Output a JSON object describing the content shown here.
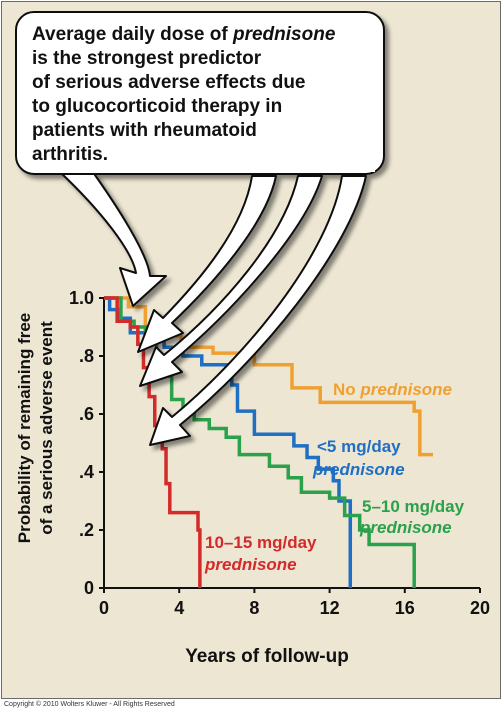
{
  "callout": {
    "line1_pre": "Average daily dose of ",
    "line1_em": "prednisone",
    "line2": "is the strongest predictor",
    "line3": "of serious adverse effects due",
    "line4": "to glucocorticoid therapy in",
    "line5": "patients with rheumatoid",
    "line6": "arthritis."
  },
  "copyright": "Copyright © 2010 Wolters Kluwer - All Rights Reserved",
  "chart_data": {
    "type": "line",
    "step": true,
    "xlabel": "Years of follow-up",
    "ylabel_line1": "Probability of remaining free",
    "ylabel_line2": "of a serious adverse event",
    "xlim": [
      0,
      20
    ],
    "ylim": [
      0,
      1
    ],
    "x_ticks": [
      "0",
      "4",
      "8",
      "12",
      "16",
      "20"
    ],
    "x_tick_values": [
      0,
      4,
      8,
      12,
      16,
      20
    ],
    "y_ticks": [
      "0",
      ".2",
      ".4",
      ".6",
      ".8",
      "1.0"
    ],
    "y_tick_values": [
      0,
      0.2,
      0.4,
      0.6,
      0.8,
      1.0
    ],
    "series": [
      {
        "name": "No prednisone",
        "label_line1_pre": "No ",
        "label_line1_em": "prednisone",
        "label_line2": "",
        "color": "#f0a030",
        "points": [
          [
            0,
            1.0
          ],
          [
            1.3,
            0.97
          ],
          [
            2.2,
            0.9
          ],
          [
            3.2,
            0.87
          ],
          [
            4.1,
            0.83
          ],
          [
            5.8,
            0.81
          ],
          [
            7.8,
            0.8
          ],
          [
            8.0,
            0.77
          ],
          [
            10.0,
            0.69
          ],
          [
            11.5,
            0.64
          ],
          [
            16.5,
            0.61
          ],
          [
            16.8,
            0.46
          ],
          [
            17.5,
            0.46
          ]
        ]
      },
      {
        "name": "<5 mg/day prednisone",
        "label_line1_pre": "<5 mg/day",
        "label_line1_em": "",
        "label_line2": "prednisone",
        "color": "#1f6fc4",
        "points": [
          [
            0,
            1.0
          ],
          [
            0.3,
            0.96
          ],
          [
            0.8,
            0.93
          ],
          [
            1.4,
            0.88
          ],
          [
            2.2,
            0.86
          ],
          [
            3.2,
            0.83
          ],
          [
            4.2,
            0.8
          ],
          [
            5.2,
            0.77
          ],
          [
            6.8,
            0.7
          ],
          [
            7.1,
            0.61
          ],
          [
            8.0,
            0.53
          ],
          [
            10.1,
            0.49
          ],
          [
            10.8,
            0.45
          ],
          [
            11.4,
            0.41
          ],
          [
            12.2,
            0.37
          ],
          [
            12.5,
            0.3
          ],
          [
            13.1,
            0.3
          ],
          [
            13.1,
            0.0
          ]
        ]
      },
      {
        "name": "5–10 mg/day prednisone",
        "label_line1_pre": "5–10 mg/day",
        "label_line1_em": "",
        "label_line2": "prednisone",
        "color": "#2aa14a",
        "points": [
          [
            0,
            1.0
          ],
          [
            0.9,
            0.92
          ],
          [
            1.6,
            0.9
          ],
          [
            2.2,
            0.85
          ],
          [
            2.8,
            0.78
          ],
          [
            3.2,
            0.73
          ],
          [
            3.6,
            0.65
          ],
          [
            4.2,
            0.61
          ],
          [
            4.8,
            0.58
          ],
          [
            5.6,
            0.55
          ],
          [
            6.5,
            0.52
          ],
          [
            7.2,
            0.46
          ],
          [
            8.8,
            0.42
          ],
          [
            9.8,
            0.38
          ],
          [
            10.5,
            0.33
          ],
          [
            12.0,
            0.31
          ],
          [
            12.8,
            0.25
          ],
          [
            13.6,
            0.2
          ],
          [
            14.1,
            0.15
          ],
          [
            16.5,
            0.15
          ],
          [
            16.5,
            0.0
          ]
        ]
      },
      {
        "name": "10–15 mg/day prednisone",
        "label_line1_pre": "10–15 mg/day",
        "label_line1_em": "",
        "label_line2": "prednisone",
        "color": "#d42a2a",
        "points": [
          [
            0,
            1.0
          ],
          [
            0.7,
            0.92
          ],
          [
            1.4,
            0.9
          ],
          [
            1.8,
            0.84
          ],
          [
            2.1,
            0.76
          ],
          [
            2.4,
            0.66
          ],
          [
            2.7,
            0.56
          ],
          [
            3.1,
            0.48
          ],
          [
            3.3,
            0.36
          ],
          [
            3.5,
            0.26
          ],
          [
            4.6,
            0.26
          ],
          [
            5.0,
            0.2
          ],
          [
            5.1,
            0.0
          ]
        ]
      }
    ]
  }
}
